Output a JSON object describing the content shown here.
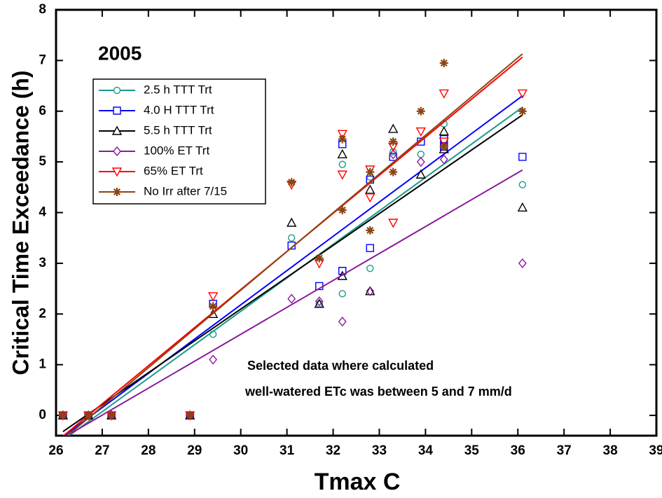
{
  "chart_data": {
    "type": "scatter",
    "title": "2005",
    "x_label": "Tmax C",
    "y_label": "Critical Time Exceedance (h)",
    "annotation": [
      "Selected data where calculated",
      "well-watered ETc was between 5 and 7 mm/d"
    ],
    "xlim": [
      26,
      39
    ],
    "xticks": [
      26,
      27,
      28,
      29,
      30,
      31,
      32,
      33,
      34,
      35,
      36,
      37,
      38,
      39
    ],
    "ylim": [
      -0.4,
      8
    ],
    "yticks": [
      0,
      1,
      2,
      3,
      4,
      5,
      6,
      7,
      8
    ],
    "trend_lines": true,
    "series": [
      {
        "name": "2.5 h TTT Trt",
        "color": "#1a9a8a",
        "marker": "circle",
        "x": [
          26.15,
          26.7,
          27.2,
          28.9,
          29.4,
          31.1,
          31.7,
          32.2,
          32.2,
          32.8,
          32.8,
          33.3,
          33.9,
          34.4,
          34.4,
          36.1
        ],
        "values": [
          0,
          0,
          0,
          0,
          1.6,
          3.5,
          2.2,
          4.95,
          2.4,
          2.9,
          4.7,
          5.2,
          5.15,
          5.75,
          5.3,
          4.55
        ]
      },
      {
        "name": "4.0 H TTT Trt",
        "color": "#0000ff",
        "marker": "square",
        "x": [
          26.15,
          26.7,
          27.2,
          28.9,
          29.4,
          31.1,
          31.7,
          32.2,
          32.2,
          32.8,
          32.8,
          33.3,
          33.9,
          34.4,
          34.4,
          36.1
        ],
        "values": [
          0,
          0,
          0,
          0,
          2.2,
          3.35,
          2.55,
          5.35,
          2.85,
          3.3,
          4.65,
          5.1,
          5.4,
          5.45,
          5.3,
          5.1
        ]
      },
      {
        "name": "5.5 h TTT Trt",
        "color": "#000000",
        "marker": "triangle-up",
        "x": [
          26.15,
          26.7,
          27.2,
          28.9,
          29.4,
          31.1,
          31.7,
          32.2,
          32.2,
          32.8,
          32.8,
          33.3,
          33.9,
          34.4,
          34.4,
          36.1
        ],
        "values": [
          0,
          0,
          0,
          0,
          2.0,
          3.8,
          2.2,
          5.15,
          2.75,
          2.45,
          4.45,
          5.65,
          4.75,
          5.6,
          5.25,
          4.1
        ]
      },
      {
        "name": "100% ET Trt",
        "color": "#8b1a9b",
        "marker": "diamond",
        "x": [
          26.15,
          26.7,
          27.2,
          28.9,
          29.4,
          31.1,
          31.7,
          32.2,
          32.8,
          33.3,
          33.9,
          34.4,
          36.1
        ],
        "values": [
          0,
          0,
          0,
          0,
          1.1,
          2.3,
          2.25,
          1.85,
          2.45,
          5.15,
          5.0,
          5.05,
          3.0
        ]
      },
      {
        "name": "65% ET Trt",
        "color": "#ff0000",
        "marker": "triangle-down",
        "x": [
          26.15,
          26.7,
          27.2,
          28.9,
          29.4,
          31.1,
          31.7,
          32.2,
          32.2,
          32.8,
          32.8,
          33.3,
          33.3,
          33.9,
          34.4,
          34.4,
          36.1
        ],
        "values": [
          0,
          0,
          0,
          0,
          2.35,
          4.55,
          3.0,
          5.55,
          4.75,
          4.3,
          4.85,
          5.3,
          3.8,
          5.6,
          6.35,
          5.4,
          6.35
        ]
      },
      {
        "name": "No Irr after 7/15",
        "color": "#8b4513",
        "marker": "asterisk",
        "x": [
          26.15,
          26.7,
          27.2,
          28.9,
          29.4,
          31.1,
          31.7,
          32.2,
          32.2,
          32.8,
          32.8,
          33.3,
          33.3,
          33.9,
          34.4,
          34.4,
          36.1
        ],
        "values": [
          0,
          0,
          0,
          0,
          2.15,
          4.6,
          3.1,
          5.45,
          4.05,
          3.65,
          4.8,
          5.4,
          4.8,
          6.0,
          6.95,
          5.3,
          6.0
        ]
      }
    ]
  }
}
